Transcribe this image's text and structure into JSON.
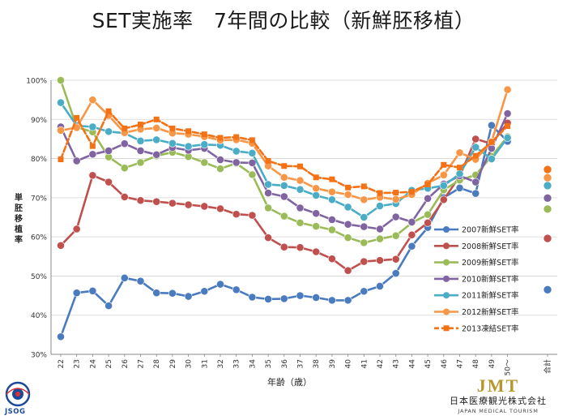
{
  "page": {
    "title": "SET実施率　7年間の比較（新鮮胚移植）"
  },
  "chart_data": {
    "type": "line",
    "title": "",
    "xlabel": "年齢（歳）",
    "ylabel": "単胚移植率",
    "ylim": [
      30,
      100
    ],
    "yticks": [
      30,
      40,
      50,
      60,
      70,
      80,
      90,
      100
    ],
    "ytick_suffix": "%",
    "grid": true,
    "legend_position": "right",
    "categories": [
      "22",
      "23",
      "24",
      "25",
      "26",
      "27",
      "28",
      "29",
      "30",
      "31",
      "32",
      "33",
      "34",
      "35",
      "36",
      "37",
      "38",
      "39",
      "40",
      "41",
      "42",
      "43",
      "44",
      "45",
      "46",
      "47",
      "48",
      "49",
      "50〜"
    ],
    "total_label": "合計",
    "series": [
      {
        "name": "2007新鮮SET率",
        "color": "#4a7bbf",
        "values": [
          34.5,
          45.7,
          46.2,
          42.4,
          49.5,
          48.7,
          45.7,
          45.6,
          44.8,
          46.1,
          47.9,
          46.5,
          44.6,
          44.1,
          44.2,
          45.0,
          44.5,
          43.8,
          43.8,
          46.1,
          47.4,
          50.7,
          57.6,
          62.4,
          70.0,
          72.5,
          71.1,
          88.5,
          84.4
        ],
        "total": 46.5
      },
      {
        "name": "2008新鮮SET率",
        "color": "#c0504d",
        "values": [
          57.8,
          62.0,
          75.7,
          74.0,
          70.2,
          69.3,
          69.0,
          68.6,
          68.2,
          67.8,
          67.2,
          65.8,
          65.5,
          59.8,
          57.4,
          57.3,
          56.2,
          54.4,
          51.4,
          53.7,
          54.0,
          54.3,
          60.5,
          63.6,
          69.5,
          75.5,
          85.0,
          83.8,
          89.1
        ],
        "total": 59.6
      },
      {
        "name": "2009新鮮SET率",
        "color": "#9bbb59",
        "values": [
          100.0,
          88.0,
          86.8,
          80.4,
          77.6,
          79.0,
          80.7,
          81.6,
          80.5,
          79.0,
          77.4,
          78.8,
          75.9,
          67.4,
          65.3,
          63.6,
          62.7,
          61.8,
          59.8,
          58.5,
          59.5,
          60.3,
          63.6,
          65.7,
          72.0,
          74.5,
          75.8,
          80.6,
          85.6
        ],
        "total": 67.1
      },
      {
        "name": "2010新鮮SET率",
        "color": "#8064a2",
        "values": [
          88.1,
          79.4,
          81.1,
          82.0,
          83.8,
          82.0,
          81.0,
          82.8,
          82.1,
          82.6,
          79.7,
          79.0,
          78.9,
          71.2,
          70.3,
          67.4,
          66.0,
          64.4,
          63.2,
          62.6,
          62.0,
          65.1,
          63.8,
          69.8,
          73.5,
          75.6,
          74.0,
          82.6,
          91.5
        ],
        "total": 69.9
      },
      {
        "name": "2011新鮮SET率",
        "color": "#4bacc6",
        "values": [
          94.3,
          88.4,
          88.1,
          86.9,
          86.5,
          84.5,
          84.8,
          83.9,
          83.1,
          83.6,
          83.4,
          81.9,
          81.4,
          73.4,
          73.1,
          72.1,
          70.6,
          69.5,
          67.6,
          65.0,
          67.9,
          68.5,
          71.9,
          72.4,
          73.1,
          76.1,
          82.9,
          79.9,
          85.3
        ],
        "total": 73.1
      },
      {
        "name": "2012新鮮SET率",
        "color": "#f79646",
        "values": [
          87.2,
          87.9,
          95.0,
          91.0,
          86.6,
          87.5,
          87.8,
          86.5,
          86.2,
          85.6,
          84.7,
          84.8,
          83.9,
          78.1,
          75.2,
          74.4,
          72.4,
          71.5,
          70.8,
          69.5,
          70.1,
          69.6,
          70.8,
          73.7,
          75.8,
          81.5,
          79.8,
          84.3,
          97.6
        ],
        "total": 75.1
      },
      {
        "name": "2013凍結SET率",
        "color": "#f47216",
        "values": [
          79.8,
          90.4,
          83.2,
          92.1,
          87.7,
          88.7,
          90.0,
          87.7,
          87.0,
          86.2,
          85.3,
          85.5,
          84.7,
          79.4,
          78.1,
          78.0,
          75.2,
          74.7,
          72.6,
          72.9,
          71.2,
          71.3,
          71.5,
          73.4,
          78.4,
          77.7,
          80.7,
          84.2,
          88.3
        ],
        "total": 77.2
      }
    ]
  },
  "logos": {
    "left_text": "JSOG",
    "right_mark": "JMT",
    "right_jp": "日本医療観光株式会社",
    "right_en": "JAPAN MEDICAL TOURISM"
  }
}
